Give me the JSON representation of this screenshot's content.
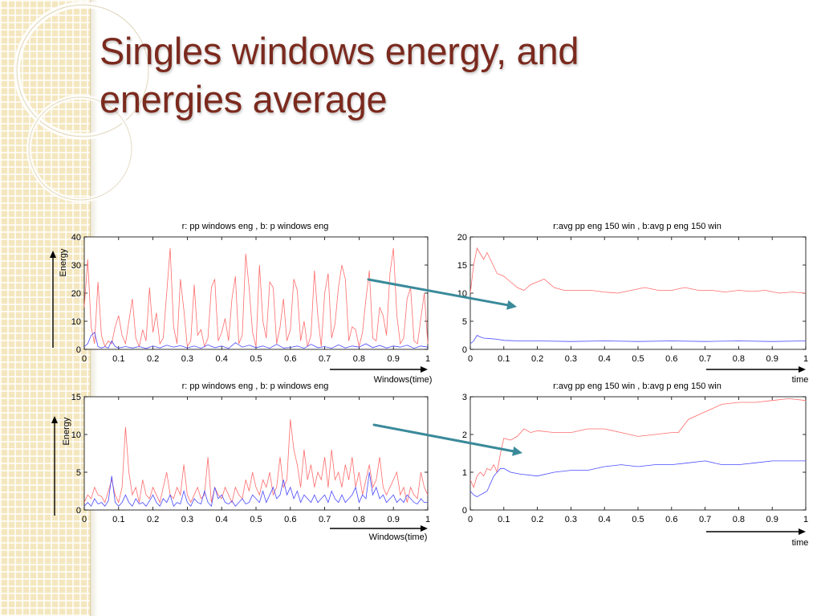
{
  "slide": {
    "title_line1": "Singles windows energy, and",
    "title_line2": "energies average"
  },
  "colors": {
    "title": "#7b2a1e",
    "series_red": "#ff6b6b",
    "series_blue": "#4a4aff",
    "arrow": "#3a8a9a"
  },
  "chart_data": [
    {
      "id": "tl",
      "type": "line",
      "title": "r: pp windows eng  , b: p windows eng",
      "ylabel": "Energy",
      "xlabel": "Windows(time)",
      "xlim": [
        0,
        1
      ],
      "ylim": [
        0,
        40
      ],
      "xticks": [
        "0",
        "0.1",
        "0.2",
        "0.3",
        "0.4",
        "0.5",
        "0.6",
        "0.7",
        "0.8",
        "0.9",
        "1"
      ],
      "yticks": [
        "0",
        "10",
        "20",
        "30",
        "40"
      ],
      "series": [
        {
          "color": "red",
          "x": [
            0,
            0.01,
            0.02,
            0.03,
            0.04,
            0.05,
            0.06,
            0.07,
            0.08,
            0.09,
            0.1,
            0.11,
            0.12,
            0.13,
            0.14,
            0.15,
            0.16,
            0.17,
            0.18,
            0.19,
            0.2,
            0.21,
            0.22,
            0.23,
            0.24,
            0.25,
            0.26,
            0.27,
            0.28,
            0.29,
            0.3,
            0.31,
            0.32,
            0.33,
            0.34,
            0.35,
            0.36,
            0.37,
            0.38,
            0.39,
            0.4,
            0.41,
            0.42,
            0.43,
            0.44,
            0.45,
            0.46,
            0.47,
            0.48,
            0.49,
            0.5,
            0.51,
            0.52,
            0.53,
            0.54,
            0.55,
            0.56,
            0.57,
            0.58,
            0.59,
            0.6,
            0.61,
            0.62,
            0.63,
            0.64,
            0.65,
            0.66,
            0.67,
            0.68,
            0.69,
            0.7,
            0.71,
            0.72,
            0.73,
            0.74,
            0.75,
            0.76,
            0.77,
            0.78,
            0.79,
            0.8,
            0.81,
            0.82,
            0.83,
            0.84,
            0.85,
            0.86,
            0.87,
            0.88,
            0.89,
            0.9,
            0.91,
            0.92,
            0.93,
            0.94,
            0.95,
            0.96,
            0.97,
            0.98,
            0.99,
            1.0
          ],
          "y": [
            15,
            32,
            8,
            2,
            24,
            5,
            1,
            3,
            2,
            8,
            12,
            5,
            2,
            10,
            18,
            4,
            1,
            7,
            3,
            22,
            6,
            13,
            2,
            4,
            20,
            36,
            8,
            2,
            25,
            14,
            1,
            3,
            23,
            5,
            7,
            1,
            4,
            22,
            25,
            3,
            6,
            11,
            3,
            18,
            26,
            2,
            5,
            34,
            22,
            6,
            1,
            30,
            10,
            4,
            24,
            22,
            2,
            8,
            18,
            3,
            7,
            25,
            21,
            3,
            10,
            1,
            5,
            28,
            12,
            1,
            20,
            27,
            4,
            9,
            22,
            30,
            25,
            3,
            8,
            7,
            1,
            6,
            18,
            28,
            4,
            3,
            15,
            12,
            5,
            27,
            36,
            12,
            2,
            4,
            18,
            22,
            3,
            2,
            11,
            20,
            2
          ]
        },
        {
          "color": "blue",
          "x": [
            0,
            0.01,
            0.02,
            0.03,
            0.04,
            0.05,
            0.06,
            0.07,
            0.08,
            0.09,
            0.1,
            0.12,
            0.14,
            0.16,
            0.18,
            0.2,
            0.22,
            0.24,
            0.26,
            0.28,
            0.3,
            0.32,
            0.34,
            0.36,
            0.38,
            0.4,
            0.42,
            0.44,
            0.46,
            0.48,
            0.5,
            0.52,
            0.54,
            0.56,
            0.58,
            0.6,
            0.62,
            0.64,
            0.66,
            0.68,
            0.7,
            0.72,
            0.74,
            0.76,
            0.78,
            0.8,
            0.82,
            0.84,
            0.86,
            0.88,
            0.9,
            0.92,
            0.94,
            0.96,
            0.98,
            1.0
          ],
          "y": [
            1,
            2,
            5,
            6,
            1,
            0.5,
            1,
            0.5,
            3,
            1,
            0.5,
            1,
            0.5,
            1,
            0.3,
            1.2,
            0.5,
            1.5,
            0.8,
            1.3,
            0.5,
            1.2,
            0.4,
            1.6,
            0.6,
            1.2,
            0.3,
            2.4,
            0.8,
            1.5,
            0.6,
            1.2,
            0.4,
            1.8,
            0.5,
            0.7,
            1.2,
            0.4,
            1.8,
            0.6,
            1,
            0.4,
            1.6,
            0.5,
            1.2,
            0.8,
            2.0,
            0.6,
            1.4,
            0.5,
            1.2,
            0.8,
            1.5,
            0.4,
            1.2,
            0.8
          ]
        }
      ]
    },
    {
      "id": "tr",
      "type": "line",
      "title": "r:avg pp eng 150 win , b:avg p eng 150 win",
      "ylabel": "",
      "xlabel": "time",
      "xlim": [
        0,
        1
      ],
      "ylim": [
        0,
        20
      ],
      "xticks": [
        "0",
        "0.1",
        "0.2",
        "0.3",
        "0.4",
        "0.5",
        "0.6",
        "0.7",
        "0.8",
        "0.9",
        "1"
      ],
      "yticks": [
        "0",
        "5",
        "10",
        "15",
        "20"
      ],
      "series": [
        {
          "color": "red",
          "x": [
            0,
            0.01,
            0.02,
            0.03,
            0.04,
            0.05,
            0.06,
            0.08,
            0.1,
            0.12,
            0.14,
            0.16,
            0.18,
            0.2,
            0.22,
            0.25,
            0.28,
            0.32,
            0.36,
            0.4,
            0.44,
            0.48,
            0.52,
            0.56,
            0.6,
            0.64,
            0.68,
            0.72,
            0.76,
            0.8,
            0.84,
            0.88,
            0.92,
            0.96,
            1.0
          ],
          "y": [
            10,
            15,
            18,
            17,
            16,
            17.2,
            16,
            13.5,
            13,
            12,
            11,
            10.5,
            11.5,
            12,
            12.5,
            11,
            10.5,
            10.5,
            10.5,
            10.2,
            10,
            10.5,
            11,
            10.5,
            10.5,
            11,
            10.5,
            10.5,
            10.2,
            10.5,
            10.3,
            10.5,
            10,
            10.2,
            10
          ]
        },
        {
          "color": "blue",
          "x": [
            0,
            0.01,
            0.02,
            0.03,
            0.04,
            0.06,
            0.08,
            0.1,
            0.15,
            0.2,
            0.3,
            0.4,
            0.5,
            0.6,
            0.7,
            0.8,
            0.9,
            1.0
          ],
          "y": [
            1,
            1.5,
            2.5,
            2.2,
            2,
            1.9,
            1.8,
            1.6,
            1.5,
            1.5,
            1.4,
            1.5,
            1.4,
            1.5,
            1.4,
            1.5,
            1.4,
            1.5
          ]
        }
      ]
    },
    {
      "id": "bl",
      "type": "line",
      "title": "r: pp windows eng  , b: p windows eng",
      "ylabel": "Energy",
      "xlabel": "Windows(time)",
      "xlim": [
        0,
        1
      ],
      "ylim": [
        0,
        15
      ],
      "xticks": [
        "0",
        "0.1",
        "0.2",
        "0.3",
        "0.4",
        "0.5",
        "0.6",
        "0.7",
        "0.8",
        "0.9",
        "1"
      ],
      "yticks": [
        "0",
        "5",
        "10",
        "15"
      ],
      "series": [
        {
          "color": "red",
          "x": [
            0,
            0.01,
            0.02,
            0.03,
            0.04,
            0.05,
            0.06,
            0.07,
            0.08,
            0.09,
            0.1,
            0.11,
            0.12,
            0.13,
            0.14,
            0.15,
            0.16,
            0.17,
            0.18,
            0.19,
            0.2,
            0.21,
            0.22,
            0.23,
            0.24,
            0.25,
            0.26,
            0.27,
            0.28,
            0.29,
            0.3,
            0.31,
            0.32,
            0.33,
            0.34,
            0.35,
            0.36,
            0.37,
            0.38,
            0.39,
            0.4,
            0.41,
            0.42,
            0.43,
            0.44,
            0.45,
            0.46,
            0.47,
            0.48,
            0.49,
            0.5,
            0.51,
            0.52,
            0.53,
            0.54,
            0.55,
            0.56,
            0.57,
            0.58,
            0.59,
            0.6,
            0.61,
            0.62,
            0.63,
            0.64,
            0.65,
            0.66,
            0.67,
            0.68,
            0.69,
            0.7,
            0.71,
            0.72,
            0.73,
            0.74,
            0.75,
            0.76,
            0.77,
            0.78,
            0.79,
            0.8,
            0.81,
            0.82,
            0.83,
            0.84,
            0.85,
            0.86,
            0.87,
            0.88,
            0.89,
            0.9,
            0.91,
            0.92,
            0.93,
            0.94,
            0.95,
            0.96,
            0.97,
            0.98,
            0.99,
            1.0
          ],
          "y": [
            1,
            2,
            1.5,
            3,
            2,
            1.8,
            1,
            2.5,
            4,
            2,
            1,
            3,
            11,
            5,
            2,
            3,
            1,
            4,
            2,
            1.5,
            3,
            2,
            1,
            3,
            5,
            2,
            1.5,
            3,
            2,
            6,
            2,
            1,
            2,
            3,
            1.5,
            2,
            7,
            1,
            3,
            2,
            1.5,
            3,
            2,
            1,
            3,
            2,
            1.5,
            4,
            2.5,
            5,
            3,
            2,
            4,
            3,
            5,
            2,
            3,
            7,
            3,
            4,
            12,
            8,
            6,
            3,
            8,
            4,
            6,
            3,
            5,
            4,
            7,
            3,
            8,
            4,
            5,
            3,
            6,
            4,
            7,
            3,
            5,
            2,
            4,
            6,
            3,
            4,
            7,
            3,
            2,
            3,
            4,
            5,
            2,
            3,
            1,
            3,
            2,
            1.5,
            5,
            3,
            2
          ]
        },
        {
          "color": "blue",
          "x": [
            0,
            0.01,
            0.02,
            0.03,
            0.04,
            0.05,
            0.06,
            0.07,
            0.08,
            0.09,
            0.1,
            0.11,
            0.12,
            0.13,
            0.14,
            0.15,
            0.16,
            0.17,
            0.18,
            0.19,
            0.2,
            0.21,
            0.22,
            0.23,
            0.24,
            0.25,
            0.26,
            0.27,
            0.28,
            0.29,
            0.3,
            0.31,
            0.32,
            0.33,
            0.34,
            0.35,
            0.36,
            0.37,
            0.38,
            0.39,
            0.4,
            0.41,
            0.42,
            0.43,
            0.44,
            0.45,
            0.46,
            0.47,
            0.48,
            0.49,
            0.5,
            0.51,
            0.52,
            0.53,
            0.54,
            0.55,
            0.56,
            0.57,
            0.58,
            0.59,
            0.6,
            0.61,
            0.62,
            0.63,
            0.64,
            0.65,
            0.66,
            0.67,
            0.68,
            0.69,
            0.7,
            0.71,
            0.72,
            0.73,
            0.74,
            0.75,
            0.76,
            0.77,
            0.78,
            0.79,
            0.8,
            0.81,
            0.82,
            0.83,
            0.84,
            0.85,
            0.86,
            0.87,
            0.88,
            0.89,
            0.9,
            0.91,
            0.92,
            0.93,
            0.94,
            0.95,
            0.96,
            0.97,
            0.98,
            0.99,
            1.0
          ],
          "y": [
            0.5,
            1,
            0.5,
            1.5,
            0.8,
            1,
            0.5,
            1.2,
            4.5,
            1,
            0.5,
            1,
            2,
            1,
            0.5,
            1.5,
            0.8,
            1,
            0.5,
            1.2,
            2,
            1,
            0.5,
            1.5,
            1,
            2,
            0.5,
            1,
            0.8,
            2.5,
            1,
            0.5,
            1.5,
            1,
            0.8,
            2.5,
            1,
            0.5,
            3,
            1.5,
            2,
            1,
            0.8,
            1.2,
            0.5,
            1,
            1.5,
            0.8,
            1,
            2,
            1.5,
            1,
            2.5,
            1,
            2,
            3,
            1.5,
            2,
            4,
            2,
            3,
            1.5,
            2.5,
            1,
            2,
            1.5,
            1,
            2,
            1,
            1.5,
            2,
            1,
            2.5,
            1.5,
            1,
            2,
            1,
            1.5,
            2,
            3,
            1,
            2,
            1.5,
            5,
            2,
            3,
            1.5,
            2,
            1,
            1.5,
            2,
            1,
            1.5,
            1,
            2,
            1.5,
            1,
            0.8,
            1.5,
            1,
            1
          ]
        }
      ]
    },
    {
      "id": "br",
      "type": "line",
      "title": "r:avg pp eng 150 win , b:avg p eng 150 win",
      "ylabel": "",
      "xlabel": "time",
      "xlim": [
        0,
        1
      ],
      "ylim": [
        0,
        3
      ],
      "xticks": [
        "0",
        "0.1",
        "0.2",
        "0.3",
        "0.4",
        "0.5",
        "0.6",
        "0.7",
        "0.8",
        "0.9",
        "1"
      ],
      "yticks": [
        "0",
        "1",
        "2",
        "3"
      ],
      "series": [
        {
          "color": "red",
          "x": [
            0,
            0.01,
            0.02,
            0.03,
            0.04,
            0.05,
            0.06,
            0.07,
            0.08,
            0.09,
            0.1,
            0.12,
            0.14,
            0.16,
            0.18,
            0.2,
            0.25,
            0.3,
            0.35,
            0.4,
            0.45,
            0.5,
            0.55,
            0.6,
            0.62,
            0.65,
            0.7,
            0.75,
            0.8,
            0.85,
            0.9,
            0.95,
            1.0
          ],
          "y": [
            0.8,
            0.6,
            0.9,
            1,
            0.9,
            1.1,
            1.05,
            1.2,
            1,
            1.5,
            1.9,
            1.85,
            1.95,
            2.15,
            2.05,
            2.1,
            2.05,
            2.05,
            2.15,
            2.15,
            2.05,
            1.95,
            2.0,
            2.05,
            2.05,
            2.4,
            2.6,
            2.8,
            2.85,
            2.85,
            2.9,
            2.95,
            2.9
          ]
        },
        {
          "color": "blue",
          "x": [
            0,
            0.01,
            0.02,
            0.03,
            0.04,
            0.05,
            0.06,
            0.07,
            0.08,
            0.09,
            0.1,
            0.12,
            0.15,
            0.2,
            0.25,
            0.3,
            0.35,
            0.4,
            0.45,
            0.5,
            0.55,
            0.6,
            0.65,
            0.7,
            0.75,
            0.8,
            0.85,
            0.9,
            0.95,
            1.0
          ],
          "y": [
            0.5,
            0.4,
            0.35,
            0.4,
            0.45,
            0.5,
            0.7,
            0.9,
            1.0,
            1.1,
            1.1,
            1.0,
            0.95,
            0.9,
            1.0,
            1.05,
            1.05,
            1.15,
            1.2,
            1.15,
            1.2,
            1.2,
            1.25,
            1.3,
            1.2,
            1.2,
            1.25,
            1.3,
            1.3,
            1.3
          ]
        }
      ]
    }
  ]
}
